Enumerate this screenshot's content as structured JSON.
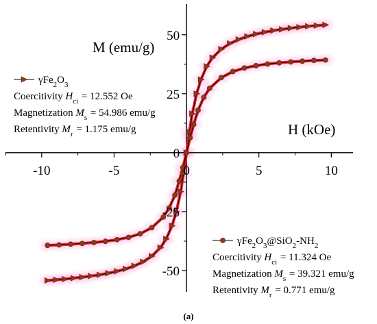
{
  "caption": "(a)",
  "chart_data": {
    "type": "scatter",
    "title": "",
    "xlabel": "H (kOe)",
    "ylabel": "M (emu/g)",
    "xlim": [
      -12.5,
      11.5
    ],
    "ylim": [
      -59,
      63
    ],
    "x_ticks": [
      -10,
      -5,
      0,
      5,
      10
    ],
    "x_tick_labels": [
      "-10",
      "-5",
      "0",
      "5",
      "10"
    ],
    "y_ticks": [
      -50,
      -25,
      25,
      50
    ],
    "y_tick_labels": [
      "-50",
      "-25",
      "25",
      "50"
    ],
    "origin_label": "0",
    "grid": false,
    "axes_through_origin": true,
    "fit_color": "#e8101a",
    "series": [
      {
        "name": "γFe2O3",
        "marker": "triangle-right",
        "color": "#8b3a1a",
        "line_color": "#000000",
        "x": [
          -9.6,
          -9.0,
          -8.4,
          -7.8,
          -7.2,
          -6.6,
          -6.0,
          -5.4,
          -4.8,
          -4.2,
          -3.6,
          -3.0,
          -2.4,
          -1.8,
          -1.4,
          -1.0,
          -0.7,
          -0.4,
          -0.2,
          0,
          0.2,
          0.4,
          0.7,
          1.0,
          1.4,
          1.8,
          2.4,
          3.0,
          3.6,
          4.2,
          4.8,
          5.4,
          6.0,
          6.6,
          7.2,
          7.8,
          8.4,
          9.0,
          9.6
        ],
        "y": [
          -54.2,
          -53.9,
          -53.6,
          -53.2,
          -52.8,
          -52.3,
          -51.8,
          -51.1,
          -50.3,
          -49.3,
          -48.0,
          -46.3,
          -43.9,
          -40.3,
          -36.6,
          -31.0,
          -25.0,
          -16.5,
          -8.8,
          0,
          8.8,
          16.5,
          25.0,
          31.0,
          36.6,
          40.3,
          43.9,
          46.3,
          48.0,
          49.3,
          50.3,
          51.1,
          51.8,
          52.3,
          52.8,
          53.2,
          53.6,
          53.9,
          54.2
        ]
      },
      {
        "name": "γFe2O3@SiO2-NH2",
        "marker": "circle",
        "color": "#8b3a1a",
        "line_color": "#000000",
        "x": [
          -9.6,
          -8.8,
          -8.0,
          -7.2,
          -6.4,
          -5.6,
          -4.8,
          -4.0,
          -3.2,
          -2.4,
          -1.6,
          -1.2,
          -0.8,
          -0.5,
          -0.25,
          0,
          0.25,
          0.5,
          0.8,
          1.2,
          1.6,
          2.4,
          3.2,
          4.0,
          4.8,
          5.6,
          6.4,
          7.2,
          8.0,
          8.8,
          9.6
        ],
        "y": [
          -39.3,
          -39.1,
          -38.8,
          -38.5,
          -38.1,
          -37.6,
          -36.9,
          -35.9,
          -34.4,
          -31.8,
          -27.3,
          -23.5,
          -18.0,
          -12.0,
          -6.3,
          0,
          6.3,
          12.0,
          18.0,
          23.5,
          27.3,
          31.8,
          34.4,
          35.9,
          36.9,
          37.6,
          38.1,
          38.5,
          38.8,
          39.1,
          39.3
        ]
      }
    ],
    "annotations": [
      {
        "series_label": "γFe2O3",
        "lines": [
          {
            "pre": "Coercitivity ",
            "sym": "H",
            "sub": "ci",
            "post": " = 12.552 Oe"
          },
          {
            "pre": "Magnetization ",
            "sym": "M",
            "sub": "s",
            "post": " = 54.986 emu/g"
          },
          {
            "pre": "Retentivity ",
            "sym": "M",
            "sub": "r",
            "post": " = 1.175 emu/g"
          }
        ]
      },
      {
        "series_label": "γFe2O3@SiO2-NH2",
        "lines": [
          {
            "pre": "Coercitivity ",
            "sym": "H",
            "sub": "ci",
            "post": " = 11.324 Oe"
          },
          {
            "pre": "Magnetization ",
            "sym": "M",
            "sub": "s",
            "post": " = 39.321 emu/g"
          },
          {
            "pre": "Retentivity ",
            "sym": "M",
            "sub": "r",
            "post": " = 0.771 emu/g"
          }
        ]
      }
    ]
  }
}
